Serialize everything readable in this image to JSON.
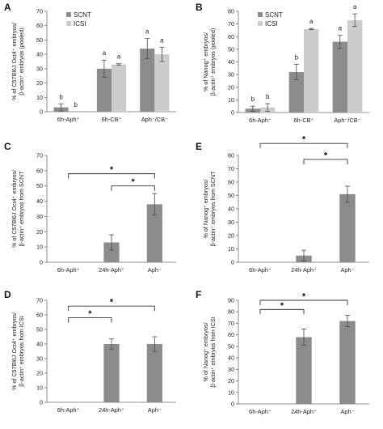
{
  "chart_data": [
    {
      "id": "A",
      "panel_letter": "A",
      "type": "bar",
      "ylabel": [
        "% of C57Bl6J Oct4⁺ embryos/",
        "β-actin⁺ embryos (pooled)"
      ],
      "ylim": [
        0,
        70
      ],
      "yticks": [
        "0",
        "10",
        "20",
        "30",
        "40",
        "50",
        "60",
        "70"
      ],
      "categories": [
        "6h-Aph⁺",
        "6h-CB⁺",
        "Aph⁻/CB⁻"
      ],
      "legend": {
        "placement": "top-left"
      },
      "series": [
        {
          "name": "SCNT",
          "color": "#8c8c8c",
          "values": [
            3,
            30,
            44
          ],
          "errors": [
            2.5,
            6,
            7
          ],
          "letters": [
            "b",
            "a",
            "a"
          ]
        },
        {
          "name": "ICSI",
          "color": "#cccccc",
          "values": [
            0,
            33,
            40
          ],
          "errors": [
            0,
            0.5,
            5
          ],
          "letters": [
            "b",
            "a",
            "a"
          ]
        }
      ]
    },
    {
      "id": "B",
      "panel_letter": "B",
      "type": "bar",
      "ylabel": [
        "% of Nanog⁺ embryos/",
        "β-actin⁺ embryos (pooled)"
      ],
      "ylim": [
        0,
        80
      ],
      "yticks": [
        "0",
        "10",
        "20",
        "30",
        "40",
        "50",
        "60",
        "70",
        "80"
      ],
      "categories": [
        "6h-Aph⁺",
        "6h-CB⁺",
        "Aph⁻/CB⁻"
      ],
      "legend": {
        "placement": "top-left"
      },
      "series": [
        {
          "name": "SCNT",
          "color": "#8c8c8c",
          "values": [
            3,
            32,
            56
          ],
          "errors": [
            2,
            6,
            5
          ],
          "letters": [
            "b",
            "b",
            "a"
          ]
        },
        {
          "name": "ICSI",
          "color": "#cccccc",
          "values": [
            4,
            66,
            73
          ],
          "errors": [
            3,
            0.5,
            5
          ],
          "letters": [
            "b",
            "a",
            "a"
          ]
        }
      ]
    },
    {
      "id": "C",
      "panel_letter": "C",
      "type": "bar",
      "ylabel": [
        "% of C57Bl6J Oct4⁺ embryos/",
        "β-actin⁺ embryos from SCNT"
      ],
      "ylim": [
        0,
        70
      ],
      "yticks": [
        "0",
        "10",
        "20",
        "30",
        "40",
        "50",
        "60",
        "70"
      ],
      "categories": [
        "6h-Aph⁺",
        "24h-Aph⁺",
        "Aph⁻"
      ],
      "series": [
        {
          "name": "",
          "color": "#8c8c8c",
          "values": [
            0,
            13,
            38
          ],
          "errors": [
            0,
            5,
            7
          ]
        }
      ],
      "significance": [
        {
          "from": 1,
          "to": 2,
          "label": "*",
          "y": 50
        },
        {
          "from": 0,
          "to": 2,
          "label": "*",
          "y": 58
        }
      ]
    },
    {
      "id": "E",
      "panel_letter": "E",
      "type": "bar",
      "ylabel": [
        "% of Nanog⁺ embryos/",
        "β-actin⁺ embryos from SCNT"
      ],
      "ylim": [
        0,
        80
      ],
      "yticks": [
        "0",
        "10",
        "20",
        "30",
        "40",
        "50",
        "60",
        "70",
        "80"
      ],
      "categories": [
        "6h-Aph⁺",
        "24h-Aph⁺",
        "Aph⁻"
      ],
      "series": [
        {
          "name": "",
          "color": "#8c8c8c",
          "values": [
            0,
            5,
            51
          ],
          "errors": [
            0,
            4,
            6
          ]
        }
      ],
      "significance": [
        {
          "from": 1,
          "to": 2,
          "label": "*",
          "y": 77
        },
        {
          "from": 0,
          "to": 2,
          "label": "*",
          "y": 89
        }
      ]
    },
    {
      "id": "D",
      "panel_letter": "D",
      "type": "bar",
      "ylabel": [
        "% of C57Bl6J Oct4⁺ embryos/",
        "β-actin⁺ embryos from ICSI"
      ],
      "ylim": [
        0,
        70
      ],
      "yticks": [
        "0",
        "10",
        "20",
        "30",
        "40",
        "50",
        "60",
        "70"
      ],
      "categories": [
        "6h-Aph⁺",
        "24h-Aph⁺",
        "Aph⁻"
      ],
      "series": [
        {
          "name": "",
          "color": "#8c8c8c",
          "values": [
            0,
            40,
            40
          ],
          "errors": [
            0,
            3.5,
            5
          ]
        }
      ],
      "significance": [
        {
          "from": 0,
          "to": 1,
          "label": "*",
          "y": 58
        },
        {
          "from": 0,
          "to": 2,
          "label": "*",
          "y": 66
        }
      ]
    },
    {
      "id": "F",
      "panel_letter": "F",
      "type": "bar",
      "ylabel": [
        "% of Nanog⁺ embryos/",
        "β-actin⁺ embryos from ICSI"
      ],
      "ylim": [
        0,
        90
      ],
      "yticks": [
        "0",
        "10",
        "20",
        "30",
        "40",
        "50",
        "60",
        "70",
        "80",
        "90"
      ],
      "categories": [
        "6h-Aph⁺",
        "24h-Aph⁺",
        "Aph⁻"
      ],
      "series": [
        {
          "name": "",
          "color": "#8c8c8c",
          "values": [
            0,
            58,
            72
          ],
          "errors": [
            0,
            7,
            5
          ]
        }
      ],
      "significance": [
        {
          "from": 0,
          "to": 1,
          "label": "*",
          "y": 82
        },
        {
          "from": 0,
          "to": 2,
          "label": "*",
          "y": 90
        }
      ]
    }
  ]
}
